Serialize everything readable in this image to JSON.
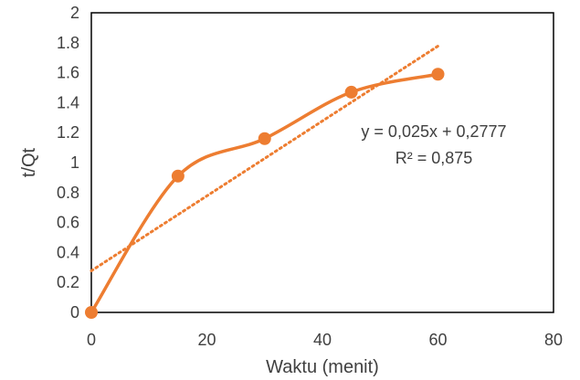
{
  "chart_data": {
    "type": "scatter",
    "title": "",
    "xlabel": "Waktu (menit)",
    "ylabel": "t/Qt",
    "xlim": [
      0,
      80
    ],
    "ylim": [
      0,
      2
    ],
    "x_ticks": [
      "0",
      "20",
      "40",
      "60",
      "80"
    ],
    "y_ticks": [
      "0",
      "0.2",
      "0.4",
      "0.6",
      "0.8",
      "1",
      "1.2",
      "1.4",
      "1.6",
      "1.8",
      "2"
    ],
    "grid": false,
    "legend": "none",
    "series": [
      {
        "x": [
          0,
          15,
          30,
          45,
          60
        ],
        "y": [
          0,
          0.91,
          1.16,
          1.47,
          1.59
        ],
        "color": "#ED7D31",
        "line": "smooth",
        "marker": "circle"
      }
    ],
    "trendline": {
      "type": "linear",
      "slope": 0.025,
      "intercept": 0.2777,
      "x_range": [
        0,
        60
      ],
      "color": "#ED7D31",
      "style": "dotted",
      "equation_label": "y = 0,025x + 0,2777",
      "r2_label": "R² = 0,875"
    }
  }
}
